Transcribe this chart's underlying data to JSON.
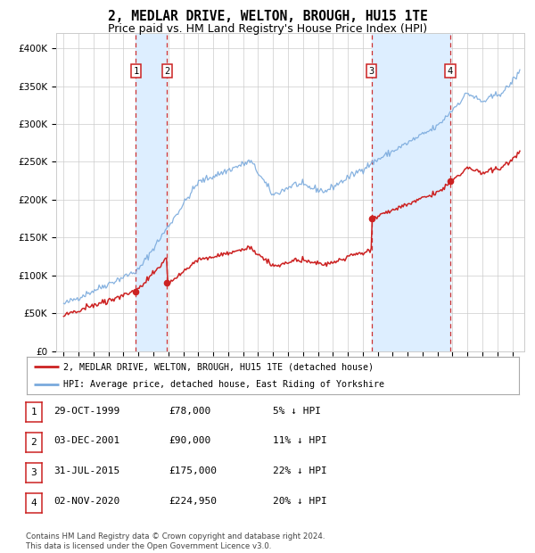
{
  "title": "2, MEDLAR DRIVE, WELTON, BROUGH, HU15 1TE",
  "subtitle": "Price paid vs. HM Land Registry's House Price Index (HPI)",
  "footer": "Contains HM Land Registry data © Crown copyright and database right 2024.\nThis data is licensed under the Open Government Licence v3.0.",
  "legend_line1": "2, MEDLAR DRIVE, WELTON, BROUGH, HU15 1TE (detached house)",
  "legend_line2": "HPI: Average price, detached house, East Riding of Yorkshire",
  "sales": [
    {
      "num": 1,
      "date": "29-OCT-1999",
      "year": 1999.83,
      "price": 78000,
      "pct": "5%"
    },
    {
      "num": 2,
      "date": "03-DEC-2001",
      "year": 2001.92,
      "price": 90000,
      "pct": "11%"
    },
    {
      "num": 3,
      "date": "31-JUL-2015",
      "year": 2015.58,
      "price": 175000,
      "pct": "22%"
    },
    {
      "num": 4,
      "date": "02-NOV-2020",
      "year": 2020.84,
      "price": 224950,
      "pct": "20%"
    }
  ],
  "table_rows": [
    [
      "1",
      "29-OCT-1999",
      "£78,000",
      "5% ↓ HPI"
    ],
    [
      "2",
      "03-DEC-2001",
      "£90,000",
      "11% ↓ HPI"
    ],
    [
      "3",
      "31-JUL-2015",
      "£175,000",
      "22% ↓ HPI"
    ],
    [
      "4",
      "02-NOV-2020",
      "£224,950",
      "20% ↓ HPI"
    ]
  ],
  "ylim": [
    0,
    420000
  ],
  "yticks": [
    0,
    50000,
    100000,
    150000,
    200000,
    250000,
    300000,
    350000,
    400000
  ],
  "xlim_start": 1994.5,
  "xlim_end": 2025.8,
  "hpi_color": "#7aaadd",
  "price_color": "#cc2222",
  "dashed_line_color": "#cc3333",
  "shade_color": "#ddeeff",
  "grid_color": "#cccccc",
  "bg_color": "#ffffff",
  "title_fontsize": 10.5,
  "subtitle_fontsize": 9
}
